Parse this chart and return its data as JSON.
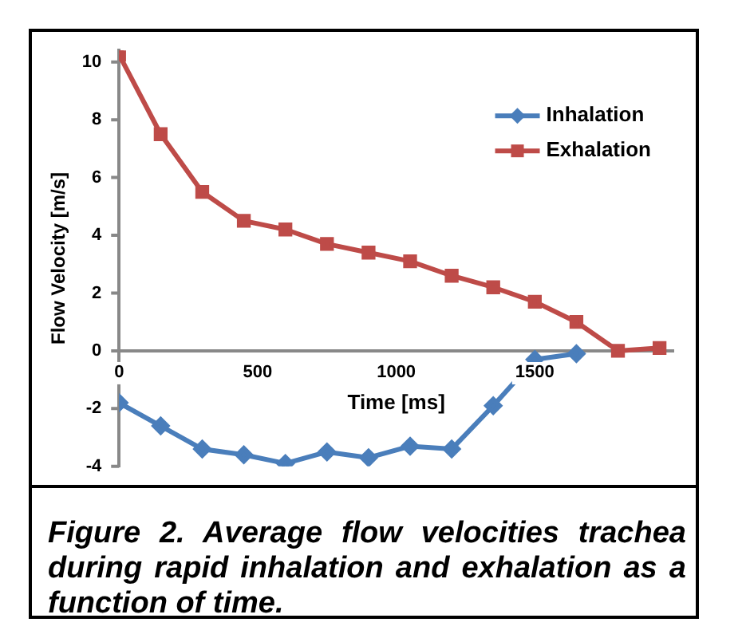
{
  "chart_data": {
    "type": "line",
    "xlabel": "Time [ms]",
    "ylabel": "Flow Velocity [m/s]",
    "xlim": [
      0,
      2000
    ],
    "xticks": [
      0,
      500,
      1000,
      1500
    ],
    "ylim": [
      -4,
      10.4
    ],
    "yticks": [
      -4,
      -2,
      0,
      2,
      4,
      6,
      8,
      10
    ],
    "grid": false,
    "legend": "top right",
    "series": [
      {
        "name": "Inhalation",
        "color": "#4a7ebb",
        "marker": "diamond",
        "x": [
          0,
          150,
          300,
          450,
          600,
          750,
          900,
          1050,
          1200,
          1350,
          1500,
          1650
        ],
        "values": [
          -1.8,
          -2.6,
          -3.4,
          -3.6,
          -3.9,
          -3.5,
          -3.7,
          -3.3,
          -3.4,
          -1.9,
          -0.3,
          -0.1
        ]
      },
      {
        "name": "Exhalation",
        "color": "#be4b48",
        "marker": "square",
        "x": [
          0,
          150,
          300,
          450,
          600,
          750,
          900,
          1050,
          1200,
          1350,
          1500,
          1650,
          1800,
          1950
        ],
        "values": [
          10.25,
          7.5,
          5.5,
          4.5,
          4.2,
          3.7,
          3.4,
          3.1,
          2.6,
          2.2,
          1.7,
          1.0,
          0,
          0.1
        ]
      }
    ],
    "annotations": [
      "Figure 2. Average flow velocities trachea during rapid inhalation and exhalation as a function of time."
    ]
  }
}
